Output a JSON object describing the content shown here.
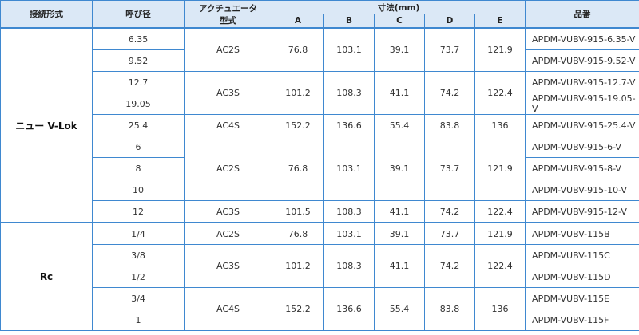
{
  "table": {
    "headers": {
      "connection": "接続形式",
      "size": "呼び径",
      "actuator": [
        "アクチュエータ",
        "型式"
      ],
      "dimensions": "寸法(mm)",
      "part": "品番"
    },
    "dim_headers": [
      "A",
      "B",
      "C",
      "D",
      "E"
    ],
    "sections": [
      {
        "connection": "ニュー V-Lok",
        "blocks": [
          {
            "actuator": "AC2S",
            "dims": [
              76.8,
              103.1,
              39.1,
              73.7,
              121.9
            ],
            "rows": [
              {
                "size": "6.35",
                "part": "APDM-VUBV-915-6.35-V"
              },
              {
                "size": "9.52",
                "part": "APDM-VUBV-915-9.52-V"
              }
            ]
          },
          {
            "actuator": "AC3S",
            "dims": [
              101.2,
              108.3,
              41.1,
              74.2,
              122.4
            ],
            "rows": [
              {
                "size": "12.7",
                "part": "APDM-VUBV-915-12.7-V"
              },
              {
                "size": "19.05",
                "part": "APDM-VUBV-915-19.05-V"
              }
            ]
          },
          {
            "actuator": "AC4S",
            "dims": [
              152.2,
              136.6,
              55.4,
              83.8,
              136
            ],
            "rows": [
              {
                "size": "25.4",
                "part": "APDM-VUBV-915-25.4-V"
              }
            ]
          },
          {
            "actuator": "AC2S",
            "dims": [
              76.8,
              103.1,
              39.1,
              73.7,
              121.9
            ],
            "rows": [
              {
                "size": "6",
                "part": "APDM-VUBV-915-6-V"
              },
              {
                "size": "8",
                "part": "APDM-VUBV-915-8-V"
              },
              {
                "size": "10",
                "part": "APDM-VUBV-915-10-V"
              }
            ]
          },
          {
            "actuator": "AC3S",
            "dims": [
              101.5,
              108.3,
              41.1,
              74.2,
              122.4
            ],
            "rows": [
              {
                "size": "12",
                "part": "APDM-VUBV-915-12-V"
              }
            ]
          }
        ]
      },
      {
        "connection": "Rc",
        "blocks": [
          {
            "actuator": "AC2S",
            "dims": [
              76.8,
              103.1,
              39.1,
              73.7,
              121.9
            ],
            "rows": [
              {
                "size": "1/4",
                "part": "APDM-VUBV-115B"
              }
            ]
          },
          {
            "actuator": "AC3S",
            "dims": [
              101.2,
              108.3,
              41.1,
              74.2,
              122.4
            ],
            "rows": [
              {
                "size": "3/8",
                "part": "APDM-VUBV-115C"
              },
              {
                "size": "1/2",
                "part": "APDM-VUBV-115D"
              }
            ]
          },
          {
            "actuator": "AC4S",
            "dims": [
              152.2,
              136.6,
              55.4,
              83.8,
              136
            ],
            "rows": [
              {
                "size": "3/4",
                "part": "APDM-VUBV-115E"
              },
              {
                "size": "1",
                "part": "APDM-VUBV-115F"
              }
            ]
          }
        ]
      }
    ]
  }
}
